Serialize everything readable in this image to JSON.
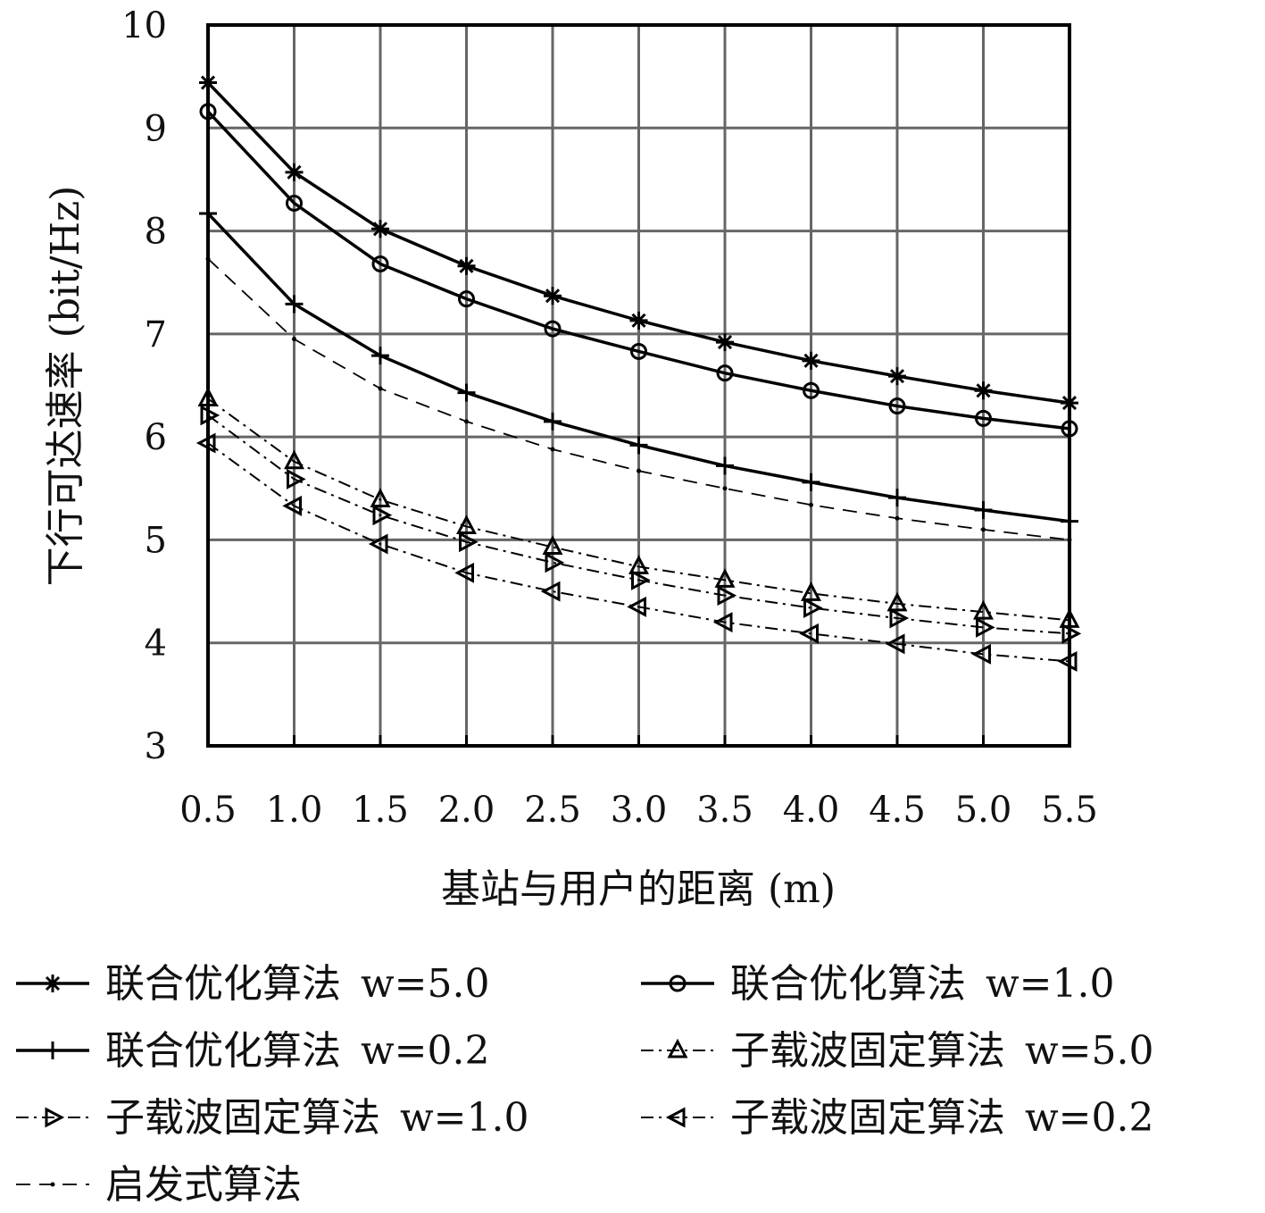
{
  "chart_data": {
    "type": "line",
    "title": "",
    "xlabel": "基站与用户的距离 (m)",
    "ylabel": "下行可达速率 (bit/Hz)",
    "xlim": [
      0.5,
      5.5
    ],
    "ylim": [
      3,
      10
    ],
    "grid": true,
    "legend_position": "bottom",
    "x": [
      0.5,
      1.0,
      1.5,
      2.0,
      2.5,
      3.0,
      3.5,
      4.0,
      4.5,
      5.0,
      5.5
    ],
    "x_tick_labels": [
      "0.5",
      "1.0",
      "1.5",
      "2.0",
      "2.5",
      "3.0",
      "3.5",
      "4.0",
      "4.5",
      "5.0",
      "5.5"
    ],
    "y_ticks": [
      3,
      4,
      5,
      6,
      7,
      8,
      9,
      10
    ],
    "y_tick_labels": [
      "3",
      "4",
      "5",
      "6",
      "7",
      "8",
      "9",
      "10"
    ],
    "series": [
      {
        "name": "联合优化算法",
        "param": "w=5.0",
        "marker": "asterisk",
        "style": "solid",
        "values": [
          9.44,
          8.57,
          8.02,
          7.66,
          7.37,
          7.13,
          6.92,
          6.74,
          6.59,
          6.45,
          6.33
        ]
      },
      {
        "name": "联合优化算法",
        "param": "w=1.0",
        "marker": "circle",
        "style": "solid",
        "values": [
          9.16,
          8.27,
          7.68,
          7.34,
          7.05,
          6.83,
          6.62,
          6.45,
          6.3,
          6.18,
          6.08
        ]
      },
      {
        "name": "联合优化算法",
        "param": "w=0.2",
        "marker": "plus",
        "style": "solid",
        "values": [
          8.17,
          7.29,
          6.79,
          6.43,
          6.15,
          5.92,
          5.72,
          5.56,
          5.41,
          5.29,
          5.18
        ]
      },
      {
        "name": "子载波固定算法",
        "param": "w=5.0",
        "marker": "triangle-up",
        "style": "dashdot",
        "values": [
          6.37,
          5.76,
          5.39,
          5.13,
          4.93,
          4.74,
          4.61,
          4.48,
          4.38,
          4.3,
          4.22
        ]
      },
      {
        "name": "子载波固定算法",
        "param": "w=1.0",
        "marker": "triangle-right",
        "style": "dashdot",
        "values": [
          6.21,
          5.59,
          5.24,
          4.98,
          4.78,
          4.61,
          4.46,
          4.34,
          4.24,
          4.15,
          4.09
        ]
      },
      {
        "name": "子载波固定算法",
        "param": "w=0.2",
        "marker": "triangle-left",
        "style": "dashdot",
        "values": [
          5.94,
          5.33,
          4.96,
          4.68,
          4.5,
          4.35,
          4.2,
          4.09,
          3.99,
          3.89,
          3.82
        ]
      },
      {
        "name": "启发式算法",
        "param": "",
        "marker": "dot",
        "style": "dashed",
        "values": [
          7.73,
          6.95,
          6.47,
          6.15,
          5.88,
          5.67,
          5.5,
          5.34,
          5.21,
          5.1,
          5.0
        ]
      }
    ]
  }
}
